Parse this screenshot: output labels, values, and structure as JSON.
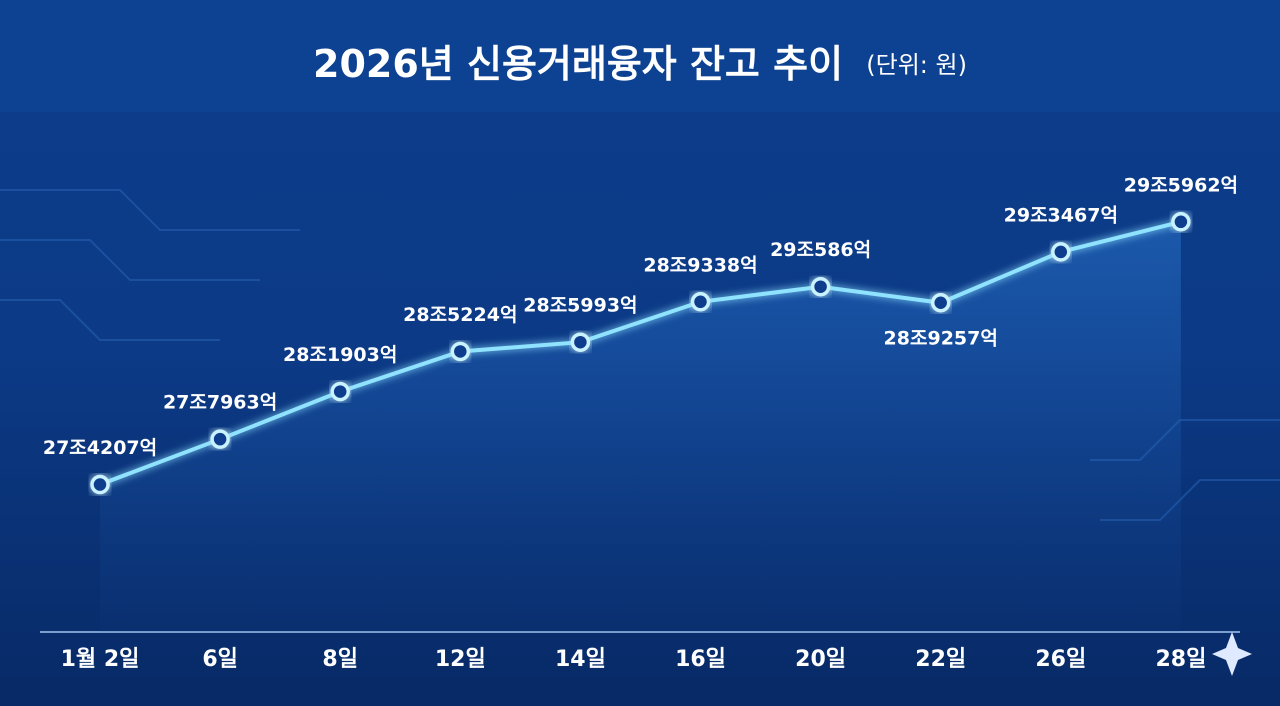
{
  "chart_data": {
    "type": "line",
    "title": "2026년 신용거래융자 잔고 추이",
    "subtitle": "(단위: 원)",
    "categories": [
      "1월 2일",
      "6일",
      "8일",
      "12일",
      "14일",
      "16일",
      "20일",
      "22일",
      "26일",
      "28일"
    ],
    "series": [
      {
        "name": "신용거래융자 잔고",
        "color": "#8fe3ff",
        "values": [
          274207,
          277963,
          281903,
          285224,
          285993,
          289338,
          290586,
          289257,
          293467,
          295962
        ],
        "value_labels": [
          "27조4207억",
          "27조7963억",
          "28조1903억",
          "28조5224억",
          "28조5993억",
          "28조9338억",
          "29조586억",
          "28조9257억",
          "29조3467억",
          "29조5962억"
        ]
      }
    ],
    "ylim": [
      262000,
      300000
    ]
  }
}
